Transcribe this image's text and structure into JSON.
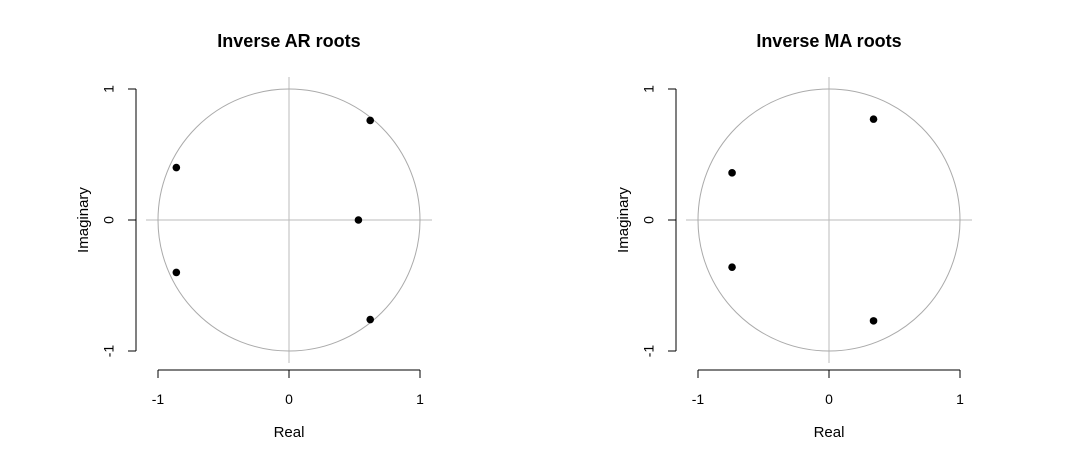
{
  "chart_data": [
    {
      "type": "scatter",
      "title": "Inverse AR roots",
      "xlabel": "Real",
      "ylabel": "Imaginary",
      "xlim": [
        -1,
        1
      ],
      "ylim": [
        -1,
        1
      ],
      "xticks": [
        "-1",
        "0",
        "1"
      ],
      "yticks": [
        "-1",
        "0",
        "1"
      ],
      "unit_circle": true,
      "grid": false,
      "points": [
        {
          "x": 0.62,
          "y": 0.76
        },
        {
          "x": -0.86,
          "y": 0.4
        },
        {
          "x": 0.53,
          "y": 0.0
        },
        {
          "x": -0.86,
          "y": -0.4
        },
        {
          "x": 0.62,
          "y": -0.76
        }
      ]
    },
    {
      "type": "scatter",
      "title": "Inverse MA roots",
      "xlabel": "Real",
      "ylabel": "Imaginary",
      "xlim": [
        -1,
        1
      ],
      "ylim": [
        -1,
        1
      ],
      "xticks": [
        "-1",
        "0",
        "1"
      ],
      "yticks": [
        "-1",
        "0",
        "1"
      ],
      "unit_circle": true,
      "grid": false,
      "points": [
        {
          "x": 0.34,
          "y": 0.77
        },
        {
          "x": -0.74,
          "y": 0.36
        },
        {
          "x": -0.74,
          "y": -0.36
        },
        {
          "x": 0.34,
          "y": -0.77
        }
      ]
    }
  ]
}
